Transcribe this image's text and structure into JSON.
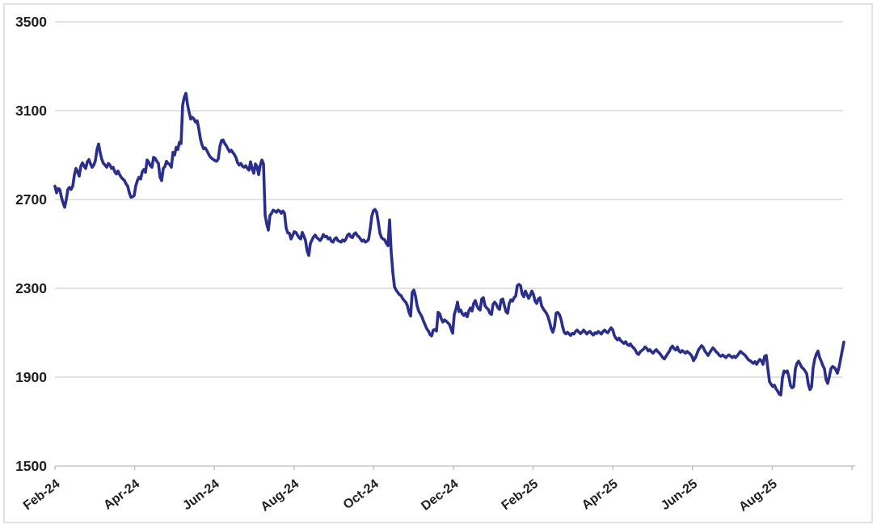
{
  "chart_data": {
    "type": "line",
    "title": "",
    "xlabel": "",
    "ylabel": "",
    "legend": "none",
    "grid": "horizontal",
    "line_color": "#2B2F8C",
    "gridline_color": "#D9D9D9",
    "axis_color": "#C6C6C6",
    "label_color": "#1f1f1f",
    "frame_color": "#D9D9D9",
    "ylim": [
      1500,
      3500
    ],
    "y_ticks": [
      3500,
      3100,
      2700,
      2300,
      1900,
      1500
    ],
    "x_tick_labels": [
      "Feb-24",
      "Apr-24",
      "Jun-24",
      "Aug-24",
      "Oct-24",
      "Dec-24",
      "Feb-25",
      "Apr-25",
      "Jun-25",
      "Aug-25"
    ],
    "x_tick_label_rotation_deg": -37,
    "x_span_note": "series of evenly spaced observations from Feb-2024 through late Sep-2025; one extra unlabeled tick follows Aug-25",
    "num_ticks_total": 11,
    "values": [
      2760,
      2730,
      2750,
      2745,
      2710,
      2685,
      2665,
      2700,
      2745,
      2755,
      2745,
      2760,
      2810,
      2840,
      2825,
      2805,
      2850,
      2865,
      2850,
      2840,
      2870,
      2880,
      2860,
      2845,
      2855,
      2875,
      2925,
      2950,
      2910,
      2880,
      2862,
      2855,
      2845,
      2862,
      2855,
      2840,
      2845,
      2825,
      2815,
      2828,
      2812,
      2800,
      2792,
      2785,
      2770,
      2760,
      2730,
      2710,
      2712,
      2718,
      2762,
      2785,
      2800,
      2792,
      2825,
      2835,
      2822,
      2878,
      2868,
      2852,
      2845,
      2890,
      2885,
      2872,
      2862,
      2800,
      2785,
      2840,
      2848,
      2872,
      2862,
      2858,
      2845,
      2912,
      2900,
      2935,
      2925,
      2958,
      2952,
      3125,
      3160,
      3178,
      3128,
      3092,
      3062,
      3070,
      3062,
      3048,
      3054,
      3018,
      2972,
      2945,
      2928,
      2932,
      2920,
      2905,
      2892,
      2885,
      2880,
      2875,
      2872,
      2882,
      2938,
      2965,
      2968,
      2952,
      2942,
      2928,
      2915,
      2922,
      2912,
      2902,
      2888,
      2865,
      2855,
      2862,
      2850,
      2845,
      2852,
      2840,
      2832,
      2870,
      2838,
      2818,
      2860,
      2848,
      2812,
      2855,
      2878,
      2860,
      2630,
      2590,
      2562,
      2628,
      2638,
      2652,
      2648,
      2642,
      2652,
      2648,
      2638,
      2648,
      2638,
      2572,
      2550,
      2548,
      2522,
      2538,
      2555,
      2552,
      2540,
      2528,
      2522,
      2552,
      2535,
      2515,
      2468,
      2448,
      2502,
      2518,
      2532,
      2540,
      2528,
      2522,
      2515,
      2525,
      2542,
      2532,
      2535,
      2522,
      2528,
      2512,
      2508,
      2522,
      2528,
      2515,
      2512,
      2508,
      2518,
      2512,
      2522,
      2540,
      2545,
      2532,
      2528,
      2545,
      2550,
      2538,
      2532,
      2522,
      2512,
      2518,
      2508,
      2512,
      2520,
      2568,
      2625,
      2650,
      2655,
      2642,
      2598,
      2548,
      2528,
      2522,
      2518,
      2502,
      2492,
      2608,
      2462,
      2372,
      2308,
      2292,
      2282,
      2272,
      2268,
      2255,
      2245,
      2238,
      2222,
      2192,
      2175,
      2282,
      2292,
      2265,
      2222,
      2198,
      2185,
      2172,
      2152,
      2135,
      2118,
      2108,
      2092,
      2086,
      2112,
      2115,
      2108,
      2192,
      2185,
      2162,
      2148,
      2158,
      2152,
      2145,
      2138,
      2118,
      2098,
      2182,
      2205,
      2238,
      2195,
      2202,
      2185,
      2178,
      2188,
      2172,
      2198,
      2212,
      2198,
      2232,
      2245,
      2222,
      2208,
      2202,
      2252,
      2258,
      2222,
      2212,
      2205,
      2188,
      2182,
      2228,
      2238,
      2228,
      2212,
      2205,
      2248,
      2252,
      2222,
      2195,
      2188,
      2232,
      2248,
      2242,
      2258,
      2265,
      2312,
      2318,
      2312,
      2275,
      2262,
      2288,
      2272,
      2255,
      2268,
      2288,
      2272,
      2242,
      2232,
      2252,
      2258,
      2222,
      2208,
      2198,
      2188,
      2172,
      2148,
      2118,
      2102,
      2128,
      2188,
      2192,
      2182,
      2162,
      2128,
      2102,
      2095,
      2102,
      2095,
      2088,
      2098,
      2094,
      2106,
      2112,
      2104,
      2096,
      2102,
      2112,
      2104,
      2094,
      2102,
      2106,
      2096,
      2090,
      2100,
      2096,
      2106,
      2100,
      2094,
      2106,
      2112,
      2104,
      2100,
      2112,
      2122,
      2114,
      2088,
      2075,
      2068,
      2076,
      2064,
      2058,
      2052,
      2060,
      2048,
      2042,
      2050,
      2038,
      2032,
      2022,
      2008,
      2002,
      2014,
      2020,
      2026,
      2036,
      2030,
      2018,
      2024,
      2014,
      2008,
      2018,
      2024,
      2014,
      2008,
      1998,
      1988,
      1982,
      1994,
      2006,
      2016,
      2032,
      2040,
      2028,
      2022,
      2036,
      2018,
      2012,
      2020,
      2014,
      2008,
      2016,
      2010,
      2004,
      1994,
      1974,
      1986,
      2002,
      2022,
      2032,
      2042,
      2034,
      2018,
      2008,
      1998,
      2010,
      2022,
      2032,
      2024,
      2014,
      2008,
      1998,
      1994,
      2000,
      1994,
      1988,
      1996,
      2000,
      1994,
      1988,
      1994,
      1988,
      1996,
      2006,
      2016,
      2010,
      2004,
      1998,
      1988,
      1978,
      1974,
      1968,
      1962,
      1970,
      1958,
      1970,
      1980,
      1974,
      1958,
      1994,
      1998,
      1938,
      1880,
      1868,
      1858,
      1864,
      1848,
      1838,
      1824,
      1820,
      1898,
      1928,
      1922,
      1928,
      1902,
      1862,
      1852,
      1858,
      1938,
      1962,
      1972,
      1958,
      1944,
      1938,
      1928,
      1916,
      1868,
      1844,
      1856,
      1944,
      1982,
      2004,
      2018,
      1988,
      1972,
      1952,
      1938,
      1888,
      1872,
      1902,
      1938,
      1948,
      1944,
      1934,
      1918,
      1944,
      1982,
      2020,
      2058
    ]
  }
}
